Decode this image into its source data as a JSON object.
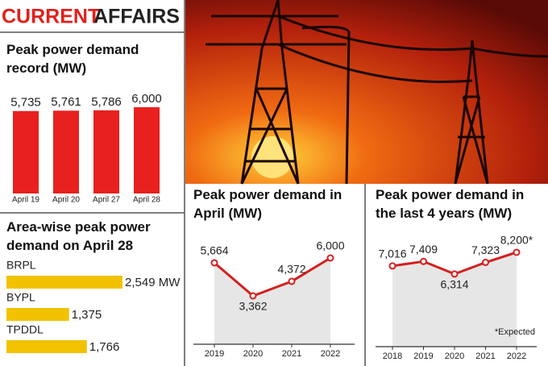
{
  "header": {
    "title_red": "CURRENT",
    "title_black": "AFFAIRS"
  },
  "chart_data": [
    {
      "type": "bar",
      "title": "Peak power demand record (MW)",
      "categories": [
        "April 19",
        "April 20",
        "April 27",
        "April 28"
      ],
      "values": [
        5735,
        5761,
        5786,
        6000
      ],
      "value_labels": [
        "5,735",
        "5,761",
        "5,786",
        "6,000"
      ],
      "color": "#e8201f"
    },
    {
      "type": "hbar",
      "title": "Area-wise peak power demand on April 28",
      "categories": [
        "BRPL",
        "BYPL",
        "TPDDL"
      ],
      "values": [
        2549,
        1375,
        1766
      ],
      "value_labels": [
        "2,549 MW",
        "1,375",
        "1,766"
      ],
      "color": "#f2c200"
    },
    {
      "type": "line",
      "title": "Peak power demand in April (MW)",
      "categories": [
        "2019",
        "2020",
        "2021",
        "2022"
      ],
      "values": [
        5664,
        3362,
        4372,
        6000
      ],
      "value_labels": [
        "5,664",
        "3,362",
        "4,372",
        "6,000"
      ],
      "color": "#d42020",
      "area_color": "#e6e6e6"
    },
    {
      "type": "line",
      "title": "Peak power demand in the last 4 years (MW)",
      "categories": [
        "2018",
        "2019",
        "2020",
        "2021",
        "2022"
      ],
      "values": [
        7016,
        7409,
        6314,
        7323,
        8200
      ],
      "value_labels": [
        "7,016",
        "7,409",
        "6,314",
        "7,323",
        "8,200*"
      ],
      "color": "#d42020",
      "area_color": "#e6e6e6",
      "annotation": "*Expected"
    }
  ]
}
